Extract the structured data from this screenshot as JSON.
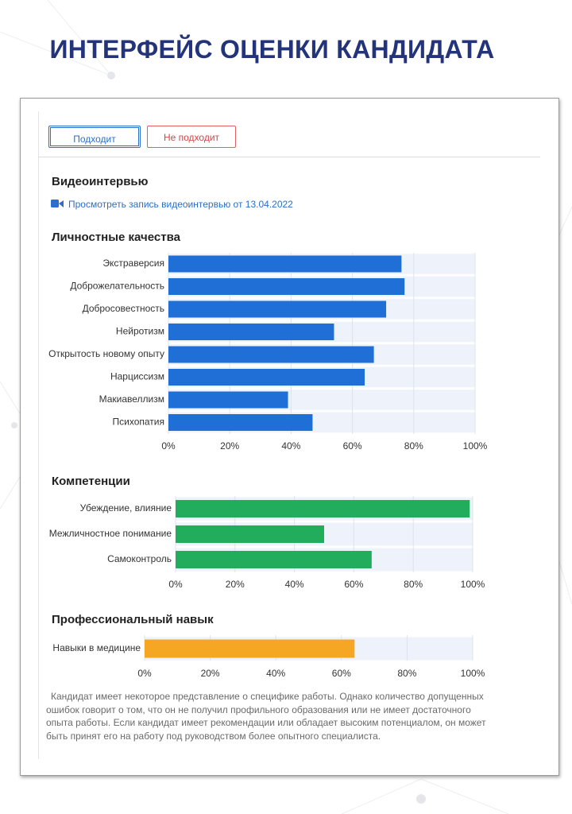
{
  "header": {
    "title": "ИНТЕРФЕЙС ОЦЕНКИ КАНДИДАТА"
  },
  "buttons": [
    "Подходит",
    "Не подходит"
  ],
  "video": {
    "heading": "Видеоинтервью",
    "link": "Просмотреть запись видеоинтервью от 13.04.2022"
  },
  "summary": "Кандидат имеет некоторое представление о специфике работы. Однако количество допущенных ошибок говорит о том, что он не получил профильного образования или не имеет достаточного опыта работы. Если кандидат имеет рекомендации или обладает высоким потенциалом, он может быть принят его на работу под руководством более опытного специалиста.",
  "chart_data": [
    {
      "type": "bar",
      "orientation": "horizontal",
      "title": "Личностные качества",
      "categories": [
        "Экстраверсия",
        "Доброжелательность",
        "Добросовестность",
        "Нейротизм",
        "Открытость новому опыту",
        "Нарциссизм",
        "Макиавеллизм",
        "Психопатия"
      ],
      "values": [
        76,
        77,
        71,
        54,
        67,
        64,
        39,
        47
      ],
      "color": "#1f6fd6",
      "xlim": [
        0,
        100
      ],
      "xticks": [
        {
          "value": 0,
          "label": "0%"
        },
        {
          "value": 20,
          "label": "20%"
        },
        {
          "value": 40,
          "label": "40%"
        },
        {
          "value": 60,
          "label": "60%"
        },
        {
          "value": 80,
          "label": "80%"
        },
        {
          "value": 100,
          "label": "100%"
        }
      ],
      "grid": true
    },
    {
      "type": "bar",
      "orientation": "horizontal",
      "title": "Компетенции",
      "categories": [
        "Убеждение, влияние",
        "Межличностное понимание",
        "Самоконтроль"
      ],
      "values": [
        99,
        50,
        66
      ],
      "color": "#22ad5c",
      "xlim": [
        0,
        100
      ],
      "xticks": [
        {
          "value": 0,
          "label": "0%"
        },
        {
          "value": 20,
          "label": "20%"
        },
        {
          "value": 40,
          "label": "40%"
        },
        {
          "value": 60,
          "label": "60%"
        },
        {
          "value": 80,
          "label": "80%"
        },
        {
          "value": 100,
          "label": "100%"
        }
      ],
      "grid": true
    },
    {
      "type": "bar",
      "orientation": "horizontal",
      "title": "Профессиональный навык",
      "categories": [
        "Навыки в медицине"
      ],
      "values": [
        64
      ],
      "color": "#f5a623",
      "xlim": [
        0,
        100
      ],
      "xticks": [
        {
          "value": 0,
          "label": "0%"
        },
        {
          "value": 20,
          "label": "20%"
        },
        {
          "value": 40,
          "label": "40%"
        },
        {
          "value": 60,
          "label": "60%"
        },
        {
          "value": 80,
          "label": "80%"
        },
        {
          "value": 100,
          "label": "100%"
        }
      ],
      "grid": true
    }
  ]
}
